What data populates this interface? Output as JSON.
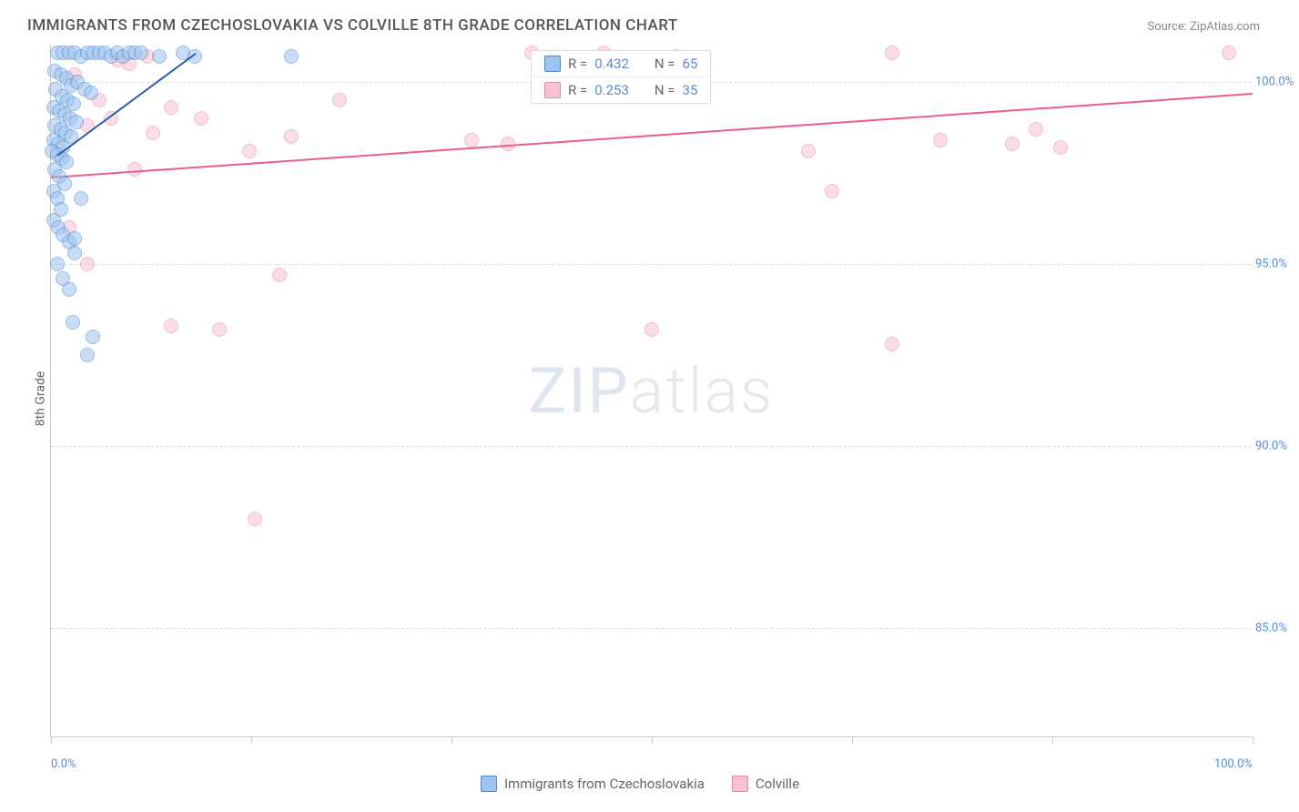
{
  "title": "IMMIGRANTS FROM CZECHOSLOVAKIA VS COLVILLE 8TH GRADE CORRELATION CHART",
  "source_label": "Source: ZipAtlas.com",
  "ylabel": "8th Grade",
  "watermark": {
    "part1": "ZIP",
    "part2": "atlas"
  },
  "chart": {
    "type": "scatter",
    "background_color": "#ffffff",
    "grid_color": "#dddddd",
    "axis_color": "#cccccc",
    "tick_label_color": "#5b8bd4",
    "label_color": "#666666",
    "title_color": "#555555",
    "title_fontsize": 17,
    "label_fontsize": 14,
    "tick_fontsize": 13,
    "marker_radius": 8,
    "marker_opacity": 0.55,
    "trend_line_width": 2,
    "xlim": [
      0,
      100
    ],
    "ylim": [
      82,
      101
    ],
    "xticks": [
      0,
      16.67,
      33.33,
      50.0,
      66.67,
      83.33,
      100.0
    ],
    "xtick_labels_shown": {
      "0": "0.0%",
      "100": "100.0%"
    },
    "yticks": [
      85,
      90,
      95,
      100
    ],
    "ytick_labels": [
      "85.0%",
      "90.0%",
      "95.0%",
      "100.0%"
    ]
  },
  "series": [
    {
      "name": "Immigrants from Czechoslovakia",
      "fill_color": "#9dc3ef",
      "stroke_color": "#4a86cf",
      "trend_color": "#2f5dab",
      "R": 0.432,
      "N": 65,
      "trend": {
        "x1": 0.5,
        "y1": 98.0,
        "x2": 12.0,
        "y2": 100.8
      },
      "points": [
        [
          0.5,
          100.8
        ],
        [
          1.0,
          100.8
        ],
        [
          1.5,
          100.8
        ],
        [
          2.0,
          100.8
        ],
        [
          2.5,
          100.7
        ],
        [
          3.0,
          100.8
        ],
        [
          3.5,
          100.8
        ],
        [
          4.0,
          100.8
        ],
        [
          4.5,
          100.8
        ],
        [
          5.0,
          100.7
        ],
        [
          5.5,
          100.8
        ],
        [
          6.0,
          100.7
        ],
        [
          6.5,
          100.8
        ],
        [
          7.0,
          100.8
        ],
        [
          7.5,
          100.8
        ],
        [
          9.0,
          100.7
        ],
        [
          11.0,
          100.8
        ],
        [
          12.0,
          100.7
        ],
        [
          0.3,
          100.3
        ],
        [
          0.8,
          100.2
        ],
        [
          1.3,
          100.1
        ],
        [
          1.7,
          99.9
        ],
        [
          2.2,
          100.0
        ],
        [
          2.8,
          99.8
        ],
        [
          3.3,
          99.7
        ],
        [
          0.4,
          99.8
        ],
        [
          0.9,
          99.6
        ],
        [
          1.4,
          99.5
        ],
        [
          1.9,
          99.4
        ],
        [
          0.2,
          99.3
        ],
        [
          0.7,
          99.2
        ],
        [
          1.1,
          99.1
        ],
        [
          1.6,
          99.0
        ],
        [
          2.1,
          98.9
        ],
        [
          0.3,
          98.8
        ],
        [
          0.8,
          98.7
        ],
        [
          1.2,
          98.6
        ],
        [
          1.7,
          98.5
        ],
        [
          0.2,
          98.4
        ],
        [
          0.6,
          98.3
        ],
        [
          1.0,
          98.2
        ],
        [
          0.1,
          98.1
        ],
        [
          0.5,
          98.0
        ],
        [
          0.9,
          97.9
        ],
        [
          1.3,
          97.8
        ],
        [
          0.3,
          97.6
        ],
        [
          0.7,
          97.4
        ],
        [
          1.1,
          97.2
        ],
        [
          0.2,
          97.0
        ],
        [
          0.5,
          96.8
        ],
        [
          0.8,
          96.5
        ],
        [
          0.2,
          96.2
        ],
        [
          0.6,
          96.0
        ],
        [
          1.0,
          95.8
        ],
        [
          1.5,
          95.6
        ],
        [
          2.0,
          95.3
        ],
        [
          2.5,
          96.8
        ],
        [
          0.5,
          95.0
        ],
        [
          1.0,
          94.6
        ],
        [
          2.0,
          95.7
        ],
        [
          1.5,
          94.3
        ],
        [
          1.8,
          93.4
        ],
        [
          3.5,
          93.0
        ],
        [
          3.0,
          92.5
        ],
        [
          20.0,
          100.7
        ]
      ]
    },
    {
      "name": "Colville",
      "fill_color": "#f6c3d0",
      "stroke_color": "#e489a3",
      "trend_color": "#e85f87",
      "R": 0.253,
      "N": 35,
      "trend": {
        "x1": 0.0,
        "y1": 97.4,
        "x2": 100.0,
        "y2": 99.7
      },
      "points": [
        [
          2.0,
          100.2
        ],
        [
          5.5,
          100.6
        ],
        [
          6.5,
          100.5
        ],
        [
          8.0,
          100.7
        ],
        [
          40.0,
          100.8
        ],
        [
          46.0,
          100.8
        ],
        [
          52.0,
          100.7
        ],
        [
          3.0,
          98.8
        ],
        [
          5.0,
          99.0
        ],
        [
          8.5,
          98.6
        ],
        [
          10.0,
          99.3
        ],
        [
          16.5,
          98.1
        ],
        [
          20.0,
          98.5
        ],
        [
          35.0,
          98.4
        ],
        [
          38.0,
          98.3
        ],
        [
          63.0,
          98.1
        ],
        [
          70.0,
          100.8
        ],
        [
          74.0,
          98.4
        ],
        [
          80.0,
          98.3
        ],
        [
          82.0,
          98.7
        ],
        [
          84.0,
          98.2
        ],
        [
          98.0,
          100.8
        ],
        [
          1.5,
          96.0
        ],
        [
          3.0,
          95.0
        ],
        [
          19.0,
          94.7
        ],
        [
          10.0,
          93.3
        ],
        [
          14.0,
          93.2
        ],
        [
          65.0,
          97.0
        ],
        [
          70.0,
          92.8
        ],
        [
          17.0,
          88.0
        ],
        [
          50.0,
          93.2
        ],
        [
          4.0,
          99.5
        ],
        [
          7.0,
          97.6
        ],
        [
          12.5,
          99.0
        ],
        [
          24.0,
          99.5
        ]
      ]
    }
  ],
  "legend_top": {
    "r_label": "R =",
    "n_label": "N ="
  },
  "legend_bottom": {
    "items": [
      "Immigrants from Czechoslovakia",
      "Colville"
    ]
  }
}
